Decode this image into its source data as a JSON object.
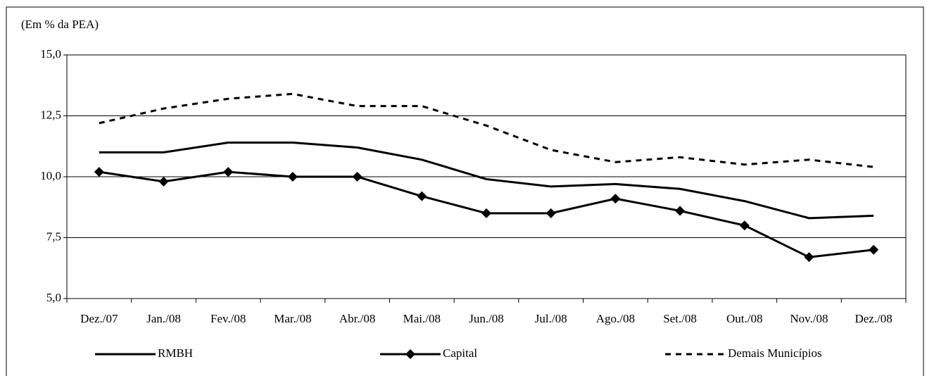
{
  "chart_data": {
    "type": "line",
    "y_label": "(Em % da PEA)",
    "categories": [
      "Dez./07",
      "Jan./08",
      "Fev./08",
      "Mar./08",
      "Abr./08",
      "Mai./08",
      "Jun./08",
      "Jul./08",
      "Ago./08",
      "Set./08",
      "Out./08",
      "Nov./08",
      "Dez./08"
    ],
    "series": [
      {
        "name": "RMBH",
        "color": "#000000",
        "style": "solid",
        "marker": "none",
        "values": [
          11.0,
          11.0,
          11.4,
          11.4,
          11.2,
          10.7,
          9.9,
          9.6,
          9.7,
          9.5,
          9.0,
          8.3,
          8.4
        ]
      },
      {
        "name": "Capital",
        "color": "#000000",
        "style": "solid",
        "marker": "diamond",
        "values": [
          10.2,
          9.8,
          10.2,
          10.0,
          10.0,
          9.2,
          8.5,
          8.5,
          9.1,
          8.6,
          8.0,
          6.7,
          7.0
        ]
      },
      {
        "name": "Demais Municípios",
        "color": "#000000",
        "style": "dashed",
        "marker": "none",
        "values": [
          12.2,
          12.8,
          13.2,
          13.4,
          12.9,
          12.9,
          12.1,
          11.1,
          10.6,
          10.8,
          10.5,
          10.7,
          10.4
        ]
      }
    ],
    "ylim": [
      5,
      15
    ],
    "yticks": [
      {
        "value": 5,
        "label": "5,0"
      },
      {
        "value": 7.5,
        "label": "7,5"
      },
      {
        "value": 10,
        "label": "10,0"
      },
      {
        "value": 12.5,
        "label": "12,5"
      },
      {
        "value": 15,
        "label": "15,0"
      }
    ],
    "grid": true,
    "legend": "bottom"
  }
}
